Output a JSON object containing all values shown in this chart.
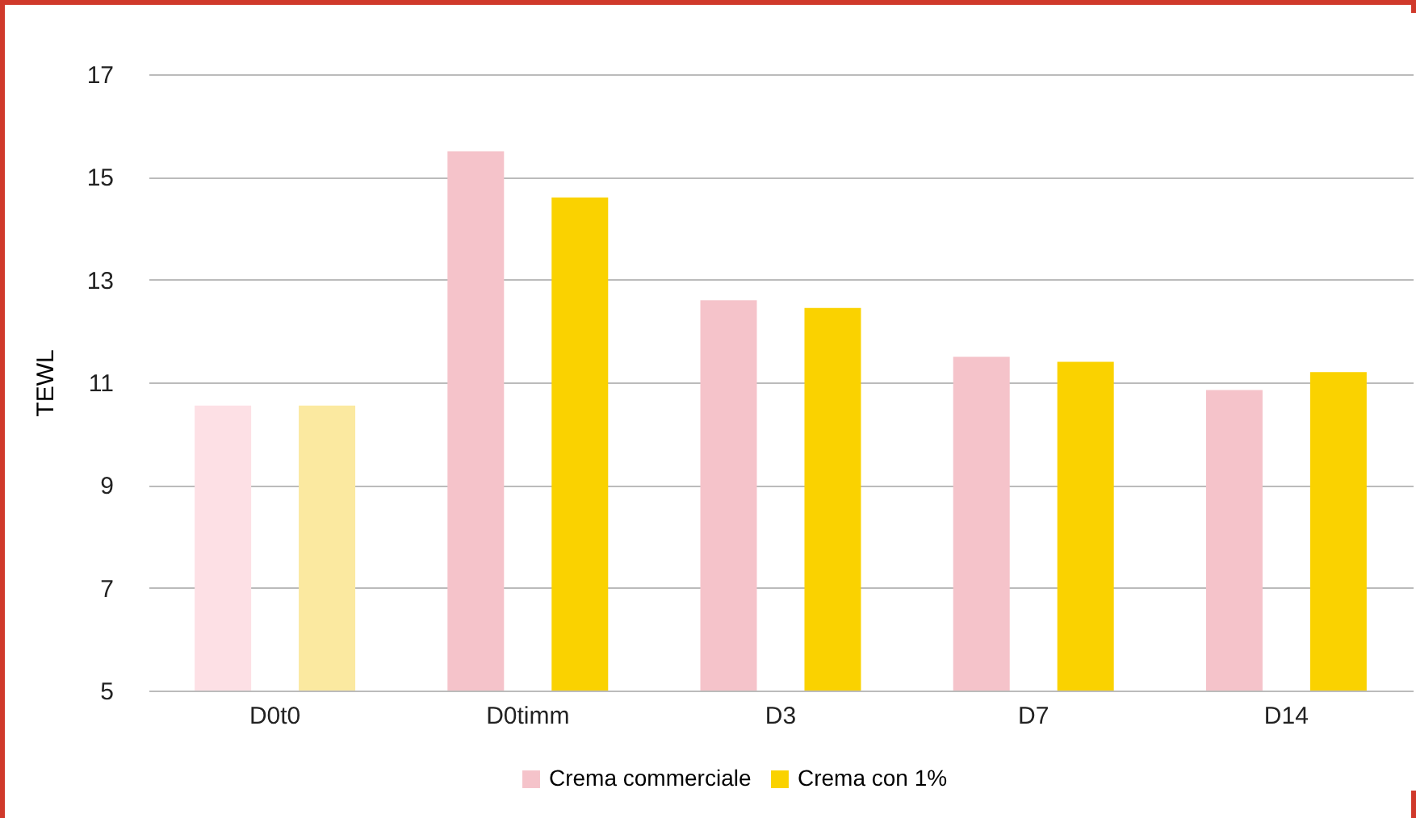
{
  "chart_data": {
    "type": "bar",
    "ylabel": "TEWL",
    "categories": [
      "D0t0",
      "D0timm",
      "D3",
      "D7",
      "D14"
    ],
    "series": [
      {
        "name": "Crema commerciale",
        "color": "#f5c3ca",
        "colors": [
          "#fde0e5",
          "#f5c3ca",
          "#f5c3ca",
          "#f5c3ca",
          "#f5c3ca"
        ],
        "values": [
          10.55,
          15.5,
          12.6,
          11.5,
          10.85
        ]
      },
      {
        "name": "Crema con 1%",
        "color": "#fad200",
        "colors": [
          "#fbe9a0",
          "#fad200",
          "#fad200",
          "#fad200",
          "#fad200"
        ],
        "values": [
          10.55,
          14.6,
          12.45,
          11.4,
          11.2
        ]
      }
    ],
    "ylim": [
      5,
      17
    ],
    "yticks": [
      5,
      7,
      9,
      11,
      13,
      15,
      17
    ],
    "grid": "y",
    "legend": "bottom"
  }
}
